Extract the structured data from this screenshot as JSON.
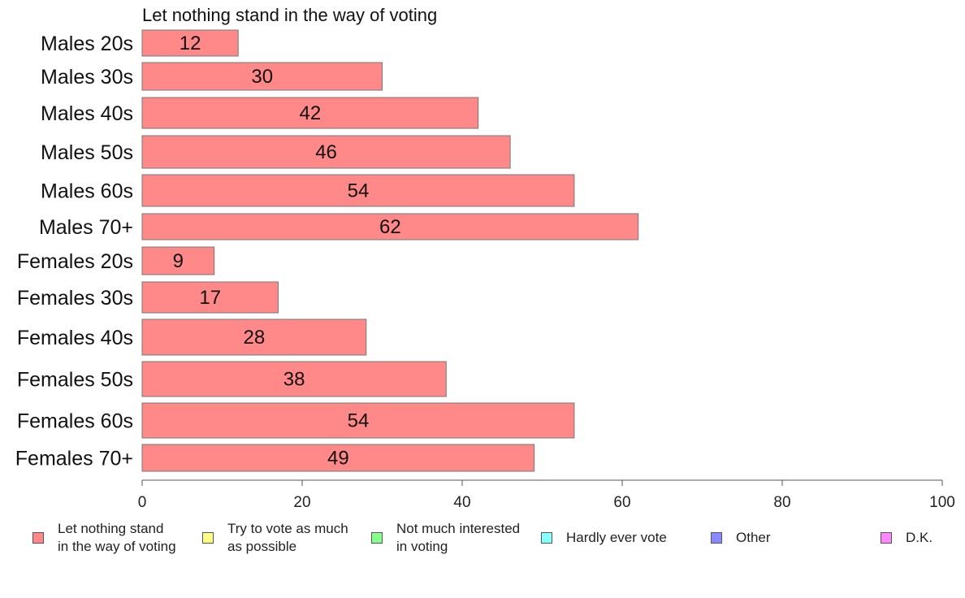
{
  "chart_data": {
    "type": "bar",
    "orientation": "horizontal",
    "title": "Let nothing stand in the way of voting",
    "categories": [
      "Males 20s",
      "Males 30s",
      "Males 40s",
      "Males 50s",
      "Males 60s",
      "Males 70+",
      "Females 20s",
      "Females 30s",
      "Females 40s",
      "Females 50s",
      "Females 60s",
      "Females 70+"
    ],
    "values": [
      12,
      30,
      42,
      46,
      54,
      62,
      9,
      17,
      28,
      38,
      54,
      49
    ],
    "xlim": [
      0,
      100
    ],
    "xticks": [
      0,
      20,
      40,
      60,
      80,
      100
    ],
    "grid": false,
    "bar_color": "#ff8888",
    "legend_position": "bottom",
    "legend": [
      {
        "label": "Let nothing stand\nin the way of voting",
        "color": "#ff8888"
      },
      {
        "label": "Try to vote as much\nas possible",
        "color": "#ffff88"
      },
      {
        "label": "Not much interested\nin voting",
        "color": "#88ff88"
      },
      {
        "label": "Hardly ever vote",
        "color": "#88ffff"
      },
      {
        "label": "Other",
        "color": "#8888ff"
      },
      {
        "label": "D.K.",
        "color": "#ff88ff"
      }
    ]
  }
}
